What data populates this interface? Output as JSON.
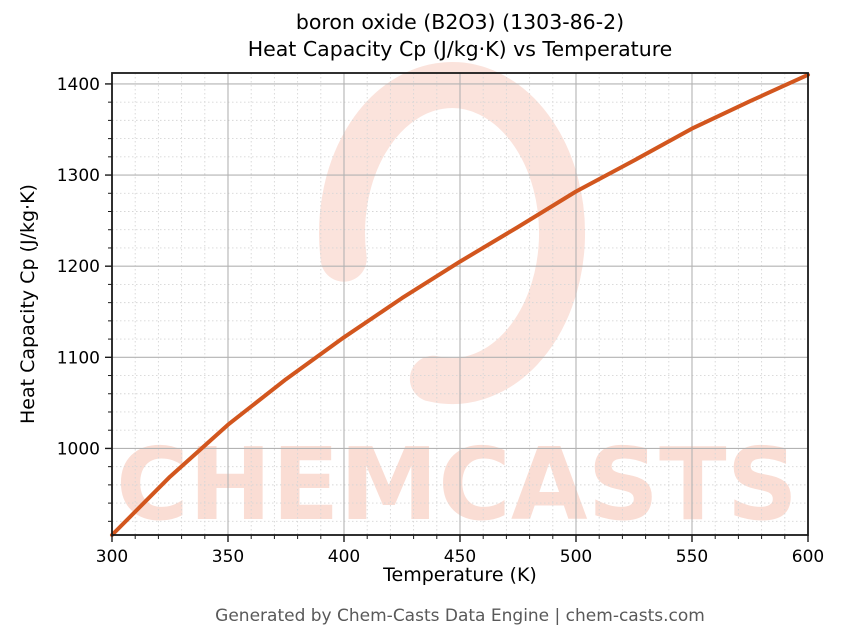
{
  "figure": {
    "title_line1": "boron oxide (B2O3) (1303-86-2)",
    "title_line2": "Heat Capacity Cp (J/kg·K) vs Temperature",
    "footer": "Generated by Chem-Casts Data Engine | chem-casts.com"
  },
  "watermark": {
    "text": "CHEMCASTS",
    "color": "#e8643c"
  },
  "chart_data": {
    "type": "line",
    "title": "boron oxide (B2O3) (1303-86-2)",
    "subtitle": "Heat Capacity Cp (J/kg·K) vs Temperature",
    "xlabel": "Temperature (K)",
    "ylabel": "Heat Capacity Cp (J/kg·K)",
    "xlim": [
      300,
      600
    ],
    "ylim": [
      905,
      1412
    ],
    "x_major_ticks": [
      300,
      350,
      400,
      450,
      500,
      550,
      600
    ],
    "y_major_ticks": [
      1000,
      1100,
      1200,
      1300,
      1400
    ],
    "x_minor_step": 10,
    "y_minor_step": 20,
    "grid": true,
    "legend_position": "none",
    "series": [
      {
        "name": "Heat Capacity Cp (J/kg·K)",
        "color": "#d2561e",
        "x": [
          300,
          325,
          350,
          375,
          400,
          425,
          450,
          475,
          500,
          525,
          550,
          575,
          600
        ],
        "y": [
          905,
          969,
          1026,
          1076,
          1122,
          1165,
          1205,
          1243,
          1282,
          1316,
          1351,
          1381,
          1410
        ]
      }
    ]
  },
  "colors": {
    "curve": "#d2561e",
    "major_grid": "#b3b3b3",
    "minor_grid": "#d6d6d6",
    "axis": "#1a1a1a",
    "tick_label": "#000000",
    "footer_text": "#595959",
    "watermark": "#e8643c",
    "background": "#ffffff"
  }
}
